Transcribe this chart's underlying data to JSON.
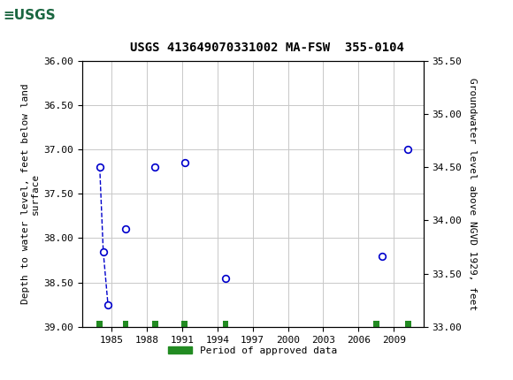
{
  "title": "USGS 413649070331002 MA-FSW  355-0104",
  "ylabel_left": "Depth to water level, feet below land\nsurface",
  "ylabel_right": "Groundwater level above NGVD 1929, feet",
  "ylim_left_top": 36.0,
  "ylim_left_bottom": 39.0,
  "ylim_right_top": 35.5,
  "ylim_right_bottom": 33.0,
  "xlim": [
    1982.5,
    2011.5
  ],
  "xticks": [
    1985,
    1988,
    1991,
    1994,
    1997,
    2000,
    2003,
    2006,
    2009
  ],
  "yticks_left": [
    36.0,
    36.5,
    37.0,
    37.5,
    38.0,
    38.5,
    39.0
  ],
  "yticks_right": [
    35.5,
    35.0,
    34.5,
    34.0,
    33.5,
    33.0
  ],
  "scatter_x": [
    1984.0,
    1984.3,
    1984.7,
    1986.2,
    1988.7,
    1991.2,
    1994.7,
    2008.0,
    2010.2
  ],
  "scatter_y": [
    37.2,
    38.15,
    38.75,
    37.9,
    37.2,
    37.15,
    38.45,
    38.2,
    37.0
  ],
  "dashed_indices": [
    0,
    1,
    2
  ],
  "bar_positions": [
    1984.0,
    1986.2,
    1988.7,
    1991.2,
    1994.7,
    2007.5,
    2010.2
  ],
  "bar_width": 0.5,
  "bar_height": 0.08,
  "bar_bottom": 38.93,
  "header_color": "#1a6640",
  "dot_color": "#0000cc",
  "bar_color": "#228B22",
  "grid_color": "#c8c8c8",
  "legend_label": "Period of approved data",
  "title_fontsize": 10,
  "tick_fontsize": 8,
  "label_fontsize": 8
}
